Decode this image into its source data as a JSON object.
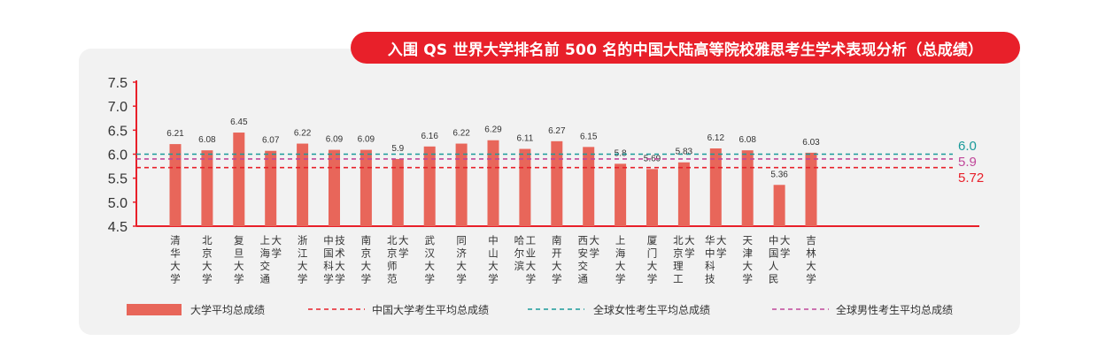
{
  "chart_data": {
    "type": "bar",
    "title": "入围 QS 世界大学排名前 500 名的中国大陆高等院校雅思考生学术表现分析（总成绩）",
    "ylim": [
      4.5,
      7.5
    ],
    "yticks": [
      "7.5",
      "7.0",
      "6.5",
      "6.0",
      "5.5",
      "5.0",
      "4.5"
    ],
    "grid": false,
    "legend_position": "bottom",
    "categories": [
      "清华大学",
      "北京大学",
      "复旦大学",
      "上海交通大学",
      "浙江大学",
      "中国科技大学",
      "南京大学",
      "北京师范大学",
      "武汉大学",
      "同济大学",
      "中山大学",
      "哈尔滨工业大学",
      "南开大学",
      "西安交通大学",
      "上海大学",
      "厦门大学",
      "北京理工大学",
      "华中科技大学",
      "天津大学",
      "中国人民大学",
      "吉林大学"
    ],
    "category_columns": [
      [
        "清华大学"
      ],
      [
        "北京大学"
      ],
      [
        "复旦大学"
      ],
      [
        "上海交通",
        "大学"
      ],
      [
        "浙江大学"
      ],
      [
        "中国科学",
        "技术大学"
      ],
      [
        "南京大学"
      ],
      [
        "北京师范",
        "大学"
      ],
      [
        "武汉大学"
      ],
      [
        "同济大学"
      ],
      [
        "中山大学"
      ],
      [
        "哈尔滨",
        "工业大学"
      ],
      [
        "南开大学"
      ],
      [
        "西安交通",
        "大学"
      ],
      [
        "上海大学"
      ],
      [
        "厦门大学"
      ],
      [
        "北京理工",
        "大学"
      ],
      [
        "华中科技",
        "大学"
      ],
      [
        "天津大学"
      ],
      [
        "中国人民",
        "大学"
      ],
      [
        "吉林大学"
      ]
    ],
    "series": [
      {
        "name": "大学平均总成绩",
        "color": "#e8665a",
        "values": [
          6.21,
          6.08,
          6.45,
          6.07,
          6.22,
          6.09,
          6.09,
          5.9,
          6.16,
          6.22,
          6.29,
          6.11,
          6.27,
          6.15,
          5.8,
          5.69,
          5.83,
          6.12,
          6.08,
          5.36,
          6.03
        ],
        "labels": [
          "6.21",
          "6.08",
          "6.45",
          "6.07",
          "6.22",
          "6.09",
          "6.09",
          "5.9",
          "6.16",
          "6.22",
          "6.29",
          "6.11",
          "6.27",
          "6.15",
          "5.8",
          "5.69",
          "5.83",
          "6.12",
          "6.08",
          "5.36",
          "6.03"
        ]
      }
    ],
    "reference_lines": [
      {
        "name": "中国大学考生平均总成绩",
        "value": 5.72,
        "label": "5.72",
        "color": "#e8202a"
      },
      {
        "name": "全球女性考生平均总成绩",
        "value": 6.0,
        "label": "6.0",
        "color": "#1a9a9a"
      },
      {
        "name": "全球男性考生平均总成绩",
        "value": 5.9,
        "label": "5.9",
        "color": "#c0479a"
      }
    ],
    "axis_color": "#e8202a"
  }
}
